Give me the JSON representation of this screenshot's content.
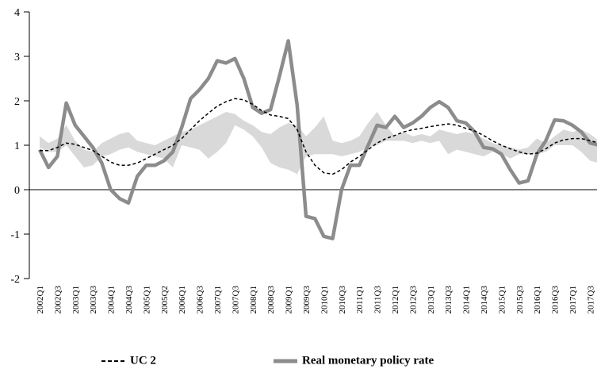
{
  "chart_data": {
    "type": "line",
    "categories": [
      "2002Q1",
      null,
      "2002Q3",
      null,
      "2003Q1",
      null,
      "2003Q3",
      null,
      "2004Q1",
      null,
      "2004Q3",
      null,
      "2005Q1",
      null,
      "2005Q2",
      null,
      "2006Q1",
      null,
      "2006Q3",
      null,
      "2007Q1",
      null,
      "2007Q3",
      null,
      "2008Q1",
      null,
      "2008Q3",
      null,
      "2009Q1",
      null,
      "2009Q3",
      null,
      "2010Q1",
      null,
      "2010Q3",
      null,
      "2011Q1",
      null,
      "2011Q3",
      null,
      "2012Q1",
      null,
      "2012Q3",
      null,
      "2013Q1",
      null,
      "2013Q3",
      null,
      "2014Q1",
      null,
      "2014Q3",
      null,
      "2015Q1",
      null,
      "2015Q3",
      null,
      "2016Q1",
      null,
      "2016Q3",
      null,
      "2017Q1",
      null,
      "2017Q3",
      null
    ],
    "series": [
      {
        "name": "UC 2",
        "color": "#000000",
        "dash": true,
        "values": [
          0.88,
          0.88,
          0.95,
          1.05,
          1.02,
          0.95,
          0.88,
          0.75,
          0.62,
          0.55,
          0.55,
          0.6,
          0.7,
          0.8,
          0.9,
          1.0,
          1.15,
          1.35,
          1.55,
          1.72,
          1.88,
          1.98,
          2.05,
          2.02,
          1.92,
          1.78,
          1.68,
          1.65,
          1.6,
          1.35,
          0.85,
          0.55,
          0.38,
          0.35,
          0.45,
          0.62,
          0.75,
          0.9,
          1.05,
          1.15,
          1.22,
          1.3,
          1.35,
          1.38,
          1.42,
          1.45,
          1.48,
          1.45,
          1.38,
          1.32,
          1.22,
          1.1,
          1.0,
          0.92,
          0.85,
          0.8,
          0.82,
          0.92,
          1.05,
          1.12,
          1.15,
          1.15,
          1.1,
          1.05
        ]
      },
      {
        "name": "Real monetary policy rate",
        "color": "#8c8c8c",
        "dash": false,
        "values": [
          0.9,
          0.5,
          0.75,
          1.95,
          1.45,
          1.2,
          0.95,
          0.6,
          0.0,
          -0.2,
          -0.3,
          0.3,
          0.55,
          0.55,
          0.65,
          0.85,
          1.4,
          2.05,
          2.25,
          2.5,
          2.9,
          2.85,
          2.95,
          2.5,
          1.85,
          1.72,
          1.8,
          2.55,
          3.35,
          1.9,
          -0.6,
          -0.65,
          -1.05,
          -1.1,
          0.0,
          0.55,
          0.55,
          1.0,
          1.45,
          1.4,
          1.65,
          1.4,
          1.5,
          1.65,
          1.85,
          1.98,
          1.85,
          1.55,
          1.5,
          1.3,
          0.95,
          0.92,
          0.8,
          0.45,
          0.15,
          0.2,
          0.8,
          1.1,
          1.57,
          1.55,
          1.45,
          1.3,
          1.05,
          1.0
        ]
      }
    ],
    "band": {
      "color": "#d9d9d9",
      "lower": [
        0.95,
        0.85,
        0.85,
        1.0,
        0.75,
        0.5,
        0.55,
        0.75,
        0.8,
        0.9,
        0.95,
        0.85,
        0.8,
        0.75,
        0.7,
        0.5,
        1.0,
        0.95,
        0.9,
        0.7,
        0.85,
        1.05,
        1.45,
        1.35,
        1.2,
        0.95,
        0.6,
        0.5,
        0.45,
        0.35,
        0.75,
        0.8,
        0.8,
        0.8,
        0.75,
        0.8,
        0.85,
        0.95,
        1.0,
        1.1,
        1.1,
        1.1,
        1.05,
        1.1,
        1.05,
        1.1,
        0.8,
        0.9,
        0.85,
        0.8,
        0.75,
        0.85,
        0.8,
        0.7,
        0.8,
        0.8,
        0.8,
        0.85,
        1.0,
        1.0,
        1.0,
        0.85,
        0.65,
        0.6
      ],
      "upper": [
        1.2,
        1.05,
        1.15,
        1.45,
        1.1,
        0.9,
        0.85,
        1.05,
        1.15,
        1.25,
        1.3,
        1.1,
        1.05,
        1.0,
        1.1,
        1.2,
        1.3,
        1.35,
        1.45,
        1.55,
        1.65,
        1.75,
        1.7,
        1.55,
        1.45,
        1.3,
        1.25,
        1.4,
        1.5,
        1.45,
        1.2,
        1.4,
        1.65,
        1.1,
        1.05,
        1.1,
        1.2,
        1.5,
        1.75,
        1.45,
        1.2,
        1.3,
        1.2,
        1.25,
        1.2,
        1.35,
        1.3,
        1.25,
        1.3,
        1.25,
        1.15,
        1.05,
        1.0,
        0.95,
        0.9,
        0.95,
        1.15,
        1.05,
        1.2,
        1.35,
        1.3,
        1.35,
        1.25,
        1.1
      ]
    },
    "ylim": [
      -2,
      4
    ],
    "yticks": [
      -2,
      -1,
      0,
      1,
      2,
      3,
      4
    ]
  }
}
